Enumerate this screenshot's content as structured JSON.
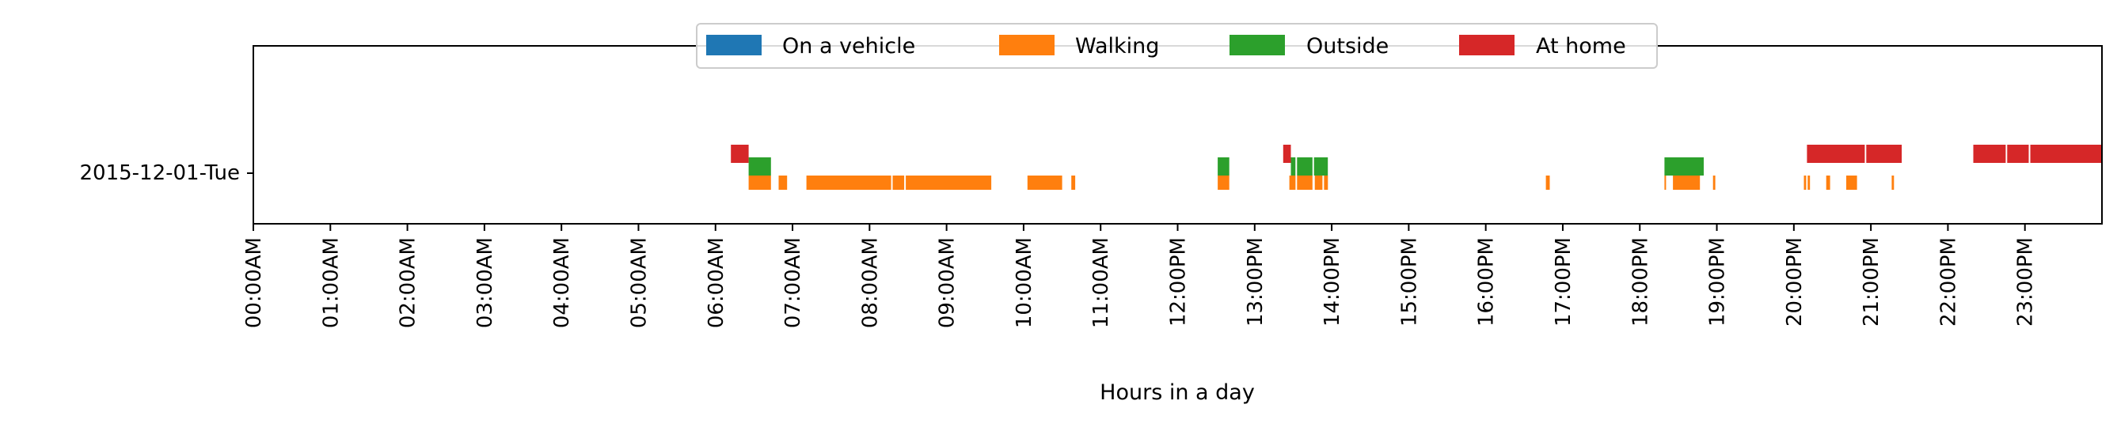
{
  "chart_data": {
    "type": "timeline",
    "title": "",
    "xlabel": "Hours in a day",
    "ylabel": "",
    "xlim": [
      0,
      24
    ],
    "grid": false,
    "legend_position": "top-center",
    "day_label": "2015-12-01-Tue",
    "x_tick_labels": [
      "00:00AM",
      "01:00AM",
      "02:00AM",
      "03:00AM",
      "04:00AM",
      "05:00AM",
      "06:00AM",
      "07:00AM",
      "08:00AM",
      "09:00AM",
      "10:00AM",
      "11:00AM",
      "12:00PM",
      "13:00PM",
      "14:00PM",
      "15:00PM",
      "16:00PM",
      "17:00PM",
      "18:00PM",
      "19:00PM",
      "20:00PM",
      "21:00PM",
      "22:00PM",
      "23:00PM"
    ],
    "series": [
      {
        "name": "On a vehicle",
        "color": "#1f77b4",
        "segments": []
      },
      {
        "name": "Walking",
        "color": "#ff7f0e",
        "segments": [
          [
            6.43,
            6.72
          ],
          [
            6.82,
            6.93
          ],
          [
            7.18,
            8.28
          ],
          [
            8.3,
            8.45
          ],
          [
            8.47,
            9.58
          ],
          [
            10.05,
            10.5
          ],
          [
            10.62,
            10.67
          ],
          [
            12.52,
            12.67
          ],
          [
            13.45,
            13.53
          ],
          [
            13.55,
            13.75
          ],
          [
            13.78,
            13.88
          ],
          [
            13.9,
            13.95
          ],
          [
            16.78,
            16.83
          ],
          [
            18.32,
            18.34
          ],
          [
            18.43,
            18.78
          ],
          [
            18.95,
            18.98
          ],
          [
            20.13,
            20.16
          ],
          [
            20.18,
            20.21
          ],
          [
            20.42,
            20.47
          ],
          [
            20.68,
            20.82
          ],
          [
            21.27,
            21.3
          ]
        ]
      },
      {
        "name": "Outside",
        "color": "#2ca02c",
        "segments": [
          [
            6.43,
            6.72
          ],
          [
            12.52,
            12.67
          ],
          [
            13.47,
            13.53
          ],
          [
            13.55,
            13.75
          ],
          [
            13.77,
            13.95
          ],
          [
            18.32,
            18.83
          ]
        ]
      },
      {
        "name": "At home",
        "color": "#d62728",
        "segments": [
          [
            6.2,
            6.43
          ],
          [
            13.37,
            13.47
          ],
          [
            20.17,
            20.92
          ],
          [
            20.94,
            21.4
          ],
          [
            22.33,
            22.75
          ],
          [
            22.77,
            23.05
          ],
          [
            23.07,
            24.0
          ]
        ]
      }
    ]
  }
}
